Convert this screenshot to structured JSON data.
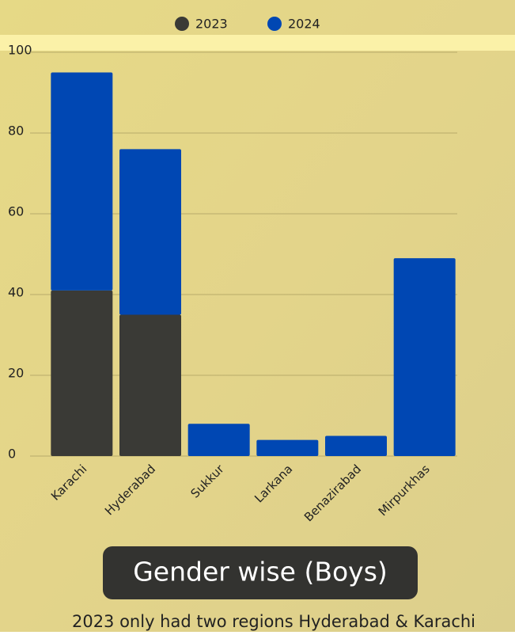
{
  "chart_data": {
    "type": "stacked_bar",
    "categories": [
      "Karachi",
      "Hyderabad",
      "Sukkur",
      "Larkana",
      "Benazirabad",
      "Mirpurkhas"
    ],
    "series": [
      {
        "name": "2023",
        "color": "#3a3a36",
        "values": [
          41,
          35,
          null,
          null,
          null,
          null
        ]
      },
      {
        "name": "2024",
        "color": "#0047b3",
        "values": [
          54,
          41,
          8,
          4,
          5,
          49
        ]
      }
    ],
    "ylim": [
      0,
      100
    ],
    "yticks": [
      0,
      20,
      40,
      60,
      80,
      100
    ],
    "grid": true,
    "legend": "top",
    "caption": "Gender wise (Boys)",
    "note": "2023 only had two regions Hyderabad & Karachi"
  }
}
